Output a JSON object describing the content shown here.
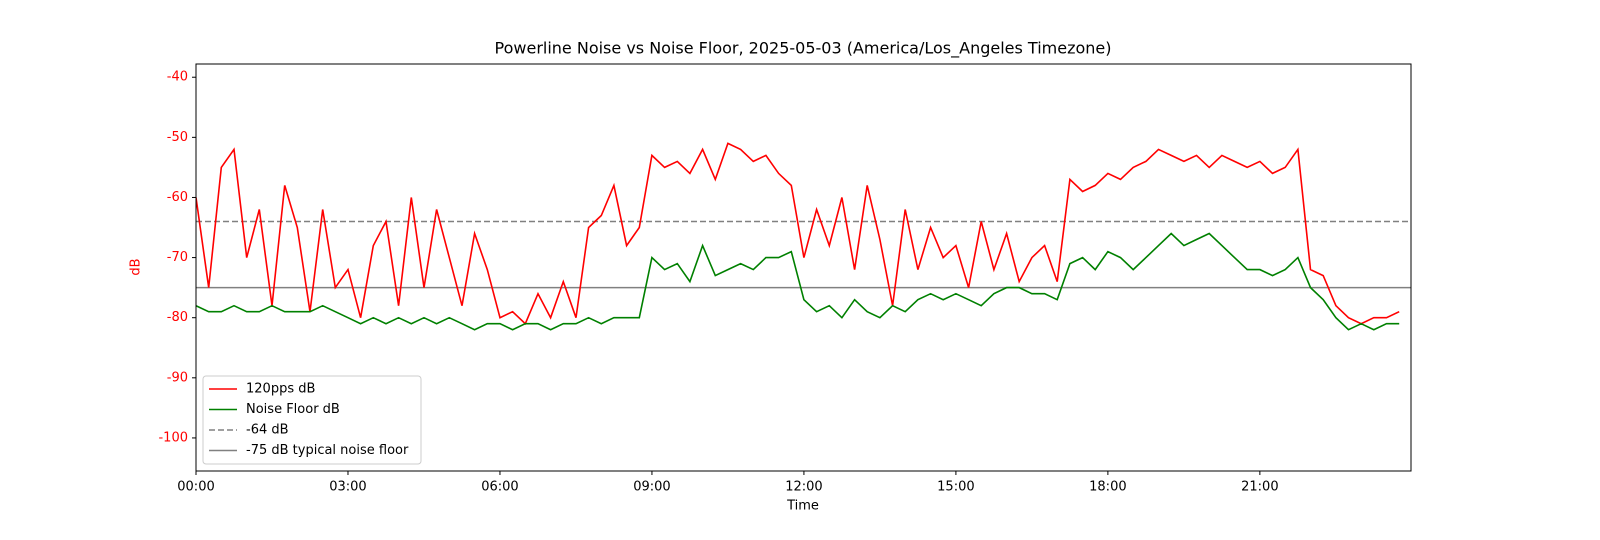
{
  "chart_data": {
    "type": "line",
    "title": "Powerline Noise vs Noise Floor, 2025-05-03 (America/Los_Angeles Timezone)",
    "x_label": "Time",
    "y_label": "dB",
    "axis_color": "#ff0000",
    "x": [
      "00:00",
      "00:15",
      "00:30",
      "00:45",
      "01:00",
      "01:15",
      "01:30",
      "01:45",
      "02:00",
      "02:15",
      "02:30",
      "02:45",
      "03:00",
      "03:15",
      "03:30",
      "03:45",
      "04:00",
      "04:15",
      "04:30",
      "04:45",
      "05:00",
      "05:15",
      "05:30",
      "05:45",
      "06:00",
      "06:15",
      "06:30",
      "06:45",
      "07:00",
      "07:15",
      "07:30",
      "07:45",
      "08:00",
      "08:15",
      "08:30",
      "08:45",
      "09:00",
      "09:15",
      "09:30",
      "09:45",
      "10:00",
      "10:15",
      "10:30",
      "10:45",
      "11:00",
      "11:15",
      "11:30",
      "11:45",
      "12:00",
      "12:15",
      "12:30",
      "12:45",
      "13:00",
      "13:15",
      "13:30",
      "13:45",
      "14:00",
      "14:15",
      "14:30",
      "14:45",
      "15:00",
      "15:15",
      "15:30",
      "15:45",
      "16:00",
      "16:15",
      "16:30",
      "16:45",
      "17:00",
      "17:15",
      "17:30",
      "17:45",
      "18:00",
      "18:15",
      "18:30",
      "18:45",
      "19:00",
      "19:15",
      "19:30",
      "19:45",
      "20:00",
      "20:15",
      "20:30",
      "20:45",
      "21:00",
      "21:15",
      "21:30",
      "21:45",
      "22:00",
      "22:15",
      "22:30",
      "22:45",
      "23:00",
      "23:15",
      "23:30",
      "23:45"
    ],
    "series": [
      {
        "name": "120pps dB",
        "color": "#ff0000",
        "values": [
          -60,
          -75,
          -55,
          -52,
          -70,
          -62,
          -78,
          -58,
          -65,
          -79,
          -62,
          -75,
          -72,
          -80,
          -68,
          -64,
          -78,
          -60,
          -75,
          -62,
          -70,
          -78,
          -66,
          -72,
          -80,
          -79,
          -81,
          -76,
          -80,
          -74,
          -80,
          -65,
          -63,
          -58,
          -68,
          -65,
          -53,
          -55,
          -54,
          -56,
          -52,
          -57,
          -51,
          -52,
          -54,
          -53,
          -56,
          -58,
          -70,
          -62,
          -68,
          -60,
          -72,
          -58,
          -67,
          -78,
          -62,
          -72,
          -65,
          -70,
          -68,
          -75,
          -64,
          -72,
          -66,
          -74,
          -70,
          -68,
          -74,
          -57,
          -59,
          -58,
          -56,
          -57,
          -55,
          -54,
          -52,
          -53,
          -54,
          -53,
          -55,
          -53,
          -54,
          -55,
          -54,
          -56,
          -55,
          -52,
          -72,
          -73,
          -78,
          -80,
          -81,
          -80,
          -80,
          -79
        ]
      },
      {
        "name": "Noise Floor dB",
        "color": "#008000",
        "values": [
          -78,
          -79,
          -79,
          -78,
          -79,
          -79,
          -78,
          -79,
          -79,
          -79,
          -78,
          -79,
          -80,
          -81,
          -80,
          -81,
          -80,
          -81,
          -80,
          -81,
          -80,
          -81,
          -82,
          -81,
          -81,
          -82,
          -81,
          -81,
          -82,
          -81,
          -81,
          -80,
          -81,
          -80,
          -80,
          -80,
          -70,
          -72,
          -71,
          -74,
          -68,
          -73,
          -72,
          -71,
          -72,
          -70,
          -70,
          -69,
          -77,
          -79,
          -78,
          -80,
          -77,
          -79,
          -80,
          -78,
          -79,
          -77,
          -76,
          -77,
          -76,
          -77,
          -78,
          -76,
          -75,
          -75,
          -76,
          -76,
          -77,
          -71,
          -70,
          -72,
          -69,
          -70,
          -72,
          -70,
          -68,
          -66,
          -68,
          -67,
          -66,
          -68,
          -70,
          -72,
          -72,
          -73,
          -72,
          -70,
          -75,
          -77,
          -80,
          -82,
          -81,
          -82,
          -81,
          -81
        ]
      }
    ],
    "reference_lines": [
      {
        "name": "-64 dB",
        "value": -64,
        "color": "#808080",
        "style": "dashed"
      },
      {
        "name": "-75 dB typical noise floor",
        "value": -75,
        "color": "#808080",
        "style": "solid"
      }
    ],
    "xlim": [
      "00:00",
      "23:59"
    ],
    "xticks": [
      "00:00",
      "03:00",
      "06:00",
      "09:00",
      "12:00",
      "15:00",
      "18:00",
      "21:00"
    ],
    "ylim": [
      -105.5,
      -37.8
    ],
    "yticks": [
      -100,
      -90,
      -80,
      -70,
      -60,
      -50,
      -40
    ],
    "legend": "lower left"
  }
}
